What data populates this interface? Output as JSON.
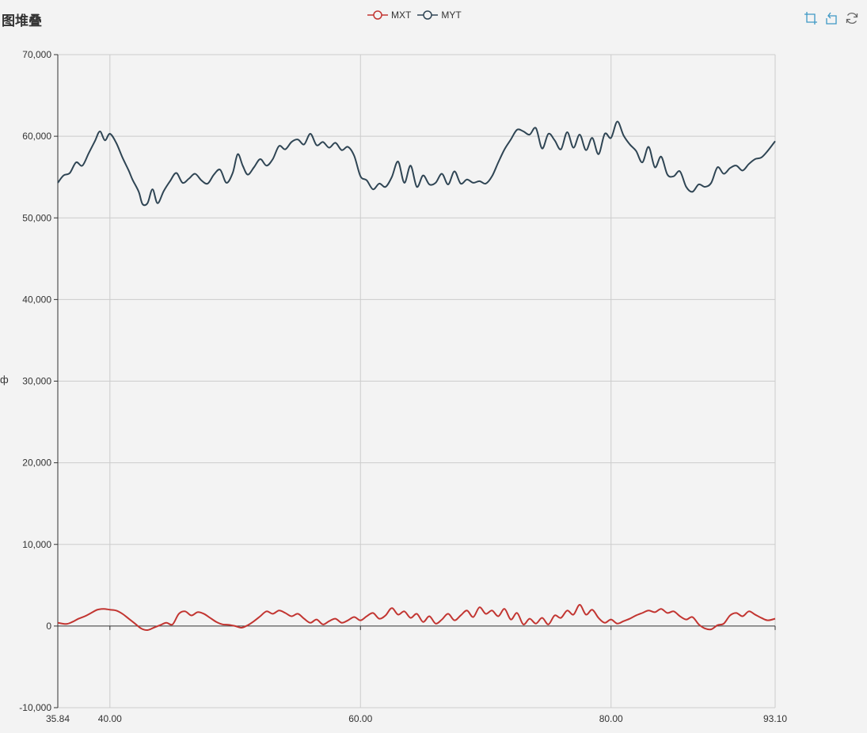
{
  "title": "图堆叠",
  "ylabel_fragment": "ф",
  "legend": [
    {
      "name": "MXT",
      "color": "#c23531"
    },
    {
      "name": "MYT",
      "color": "#2f4554"
    }
  ],
  "toolbox": {
    "icons": [
      "data-zoom-icon",
      "zoom-reset-icon",
      "restore-icon"
    ],
    "color": "#3e98c5"
  },
  "chart_data": {
    "type": "line",
    "xlim": [
      35.84,
      93.1
    ],
    "ylim": [
      -10000,
      70000
    ],
    "xticks": [
      35.84,
      40.0,
      60.0,
      80.0,
      93.1
    ],
    "xtick_labels": [
      "35.84",
      "40.00",
      "60.00",
      "80.00",
      "93.10"
    ],
    "yticks": [
      -10000,
      0,
      10000,
      20000,
      30000,
      40000,
      50000,
      60000,
      70000
    ],
    "ytick_labels": [
      "-10,000",
      "0",
      "10,000",
      "20,000",
      "30,000",
      "40,000",
      "50,000",
      "60,000",
      "70,000"
    ],
    "grid": true,
    "legend_position": "top-center",
    "series": [
      {
        "name": "MXT",
        "color": "#c23531",
        "points": [
          [
            35.84,
            400
          ],
          [
            36.5,
            250
          ],
          [
            37.0,
            500
          ],
          [
            37.5,
            900
          ],
          [
            38.0,
            1200
          ],
          [
            38.5,
            1600
          ],
          [
            39.0,
            2000
          ],
          [
            39.5,
            2100
          ],
          [
            40.0,
            2000
          ],
          [
            40.5,
            1900
          ],
          [
            41.0,
            1500
          ],
          [
            41.5,
            900
          ],
          [
            42.0,
            300
          ],
          [
            42.5,
            -300
          ],
          [
            43.0,
            -500
          ],
          [
            43.5,
            -200
          ],
          [
            44.0,
            100
          ],
          [
            44.5,
            400
          ],
          [
            45.0,
            200
          ],
          [
            45.5,
            1500
          ],
          [
            46.0,
            1800
          ],
          [
            46.5,
            1300
          ],
          [
            47.0,
            1700
          ],
          [
            47.5,
            1500
          ],
          [
            48.0,
            1000
          ],
          [
            48.5,
            500
          ],
          [
            49.0,
            200
          ],
          [
            49.5,
            150
          ],
          [
            50.0,
            0
          ],
          [
            50.5,
            -200
          ],
          [
            51.0,
            100
          ],
          [
            51.5,
            600
          ],
          [
            52.0,
            1200
          ],
          [
            52.5,
            1800
          ],
          [
            53.0,
            1500
          ],
          [
            53.5,
            1900
          ],
          [
            54.0,
            1600
          ],
          [
            54.5,
            1200
          ],
          [
            55.0,
            1500
          ],
          [
            55.5,
            900
          ],
          [
            56.0,
            400
          ],
          [
            56.5,
            800
          ],
          [
            57.0,
            200
          ],
          [
            57.5,
            600
          ],
          [
            58.0,
            900
          ],
          [
            58.5,
            400
          ],
          [
            59.0,
            700
          ],
          [
            59.5,
            1100
          ],
          [
            60.0,
            700
          ],
          [
            60.5,
            1200
          ],
          [
            61.0,
            1600
          ],
          [
            61.5,
            900
          ],
          [
            62.0,
            1300
          ],
          [
            62.5,
            2200
          ],
          [
            63.0,
            1400
          ],
          [
            63.5,
            1800
          ],
          [
            64.0,
            1000
          ],
          [
            64.5,
            1500
          ],
          [
            65.0,
            500
          ],
          [
            65.5,
            1200
          ],
          [
            66.0,
            300
          ],
          [
            66.5,
            800
          ],
          [
            67.0,
            1500
          ],
          [
            67.5,
            700
          ],
          [
            68.0,
            1300
          ],
          [
            68.5,
            1900
          ],
          [
            69.0,
            1100
          ],
          [
            69.5,
            2300
          ],
          [
            70.0,
            1500
          ],
          [
            70.5,
            1900
          ],
          [
            71.0,
            1200
          ],
          [
            71.5,
            2100
          ],
          [
            72.0,
            800
          ],
          [
            72.5,
            1600
          ],
          [
            73.0,
            200
          ],
          [
            73.5,
            900
          ],
          [
            74.0,
            300
          ],
          [
            74.5,
            1000
          ],
          [
            75.0,
            200
          ],
          [
            75.5,
            1300
          ],
          [
            76.0,
            1000
          ],
          [
            76.5,
            1900
          ],
          [
            77.0,
            1400
          ],
          [
            77.5,
            2600
          ],
          [
            78.0,
            1400
          ],
          [
            78.5,
            2000
          ],
          [
            79.0,
            1000
          ],
          [
            79.5,
            400
          ],
          [
            80.0,
            800
          ],
          [
            80.5,
            300
          ],
          [
            81.0,
            600
          ],
          [
            81.5,
            900
          ],
          [
            82.0,
            1300
          ],
          [
            82.5,
            1600
          ],
          [
            83.0,
            1900
          ],
          [
            83.5,
            1700
          ],
          [
            84.0,
            2100
          ],
          [
            84.5,
            1600
          ],
          [
            85.0,
            1800
          ],
          [
            85.5,
            1200
          ],
          [
            86.0,
            800
          ],
          [
            86.5,
            1100
          ],
          [
            87.0,
            200
          ],
          [
            87.5,
            -300
          ],
          [
            88.0,
            -400
          ],
          [
            88.5,
            100
          ],
          [
            89.0,
            300
          ],
          [
            89.5,
            1300
          ],
          [
            90.0,
            1600
          ],
          [
            90.5,
            1200
          ],
          [
            91.0,
            1800
          ],
          [
            91.5,
            1400
          ],
          [
            92.0,
            1000
          ],
          [
            92.5,
            700
          ],
          [
            93.1,
            900
          ]
        ]
      },
      {
        "name": "MYT",
        "color": "#2f4554",
        "points": [
          [
            35.84,
            54300
          ],
          [
            36.3,
            55200
          ],
          [
            36.8,
            55500
          ],
          [
            37.3,
            56800
          ],
          [
            37.8,
            56400
          ],
          [
            38.3,
            57900
          ],
          [
            38.8,
            59400
          ],
          [
            39.2,
            60600
          ],
          [
            39.6,
            59500
          ],
          [
            40.0,
            60300
          ],
          [
            40.5,
            59200
          ],
          [
            41.0,
            57400
          ],
          [
            41.5,
            55800
          ],
          [
            41.8,
            54700
          ],
          [
            42.3,
            53200
          ],
          [
            42.6,
            51700
          ],
          [
            43.0,
            51800
          ],
          [
            43.4,
            53500
          ],
          [
            43.8,
            51800
          ],
          [
            44.3,
            53300
          ],
          [
            44.8,
            54500
          ],
          [
            45.3,
            55500
          ],
          [
            45.8,
            54300
          ],
          [
            46.3,
            54800
          ],
          [
            46.8,
            55400
          ],
          [
            47.3,
            54600
          ],
          [
            47.8,
            54200
          ],
          [
            48.3,
            55300
          ],
          [
            48.8,
            55900
          ],
          [
            49.3,
            54300
          ],
          [
            49.8,
            55500
          ],
          [
            50.2,
            57800
          ],
          [
            50.6,
            56400
          ],
          [
            51.0,
            55300
          ],
          [
            51.5,
            56200
          ],
          [
            52.0,
            57200
          ],
          [
            52.5,
            56400
          ],
          [
            53.0,
            57200
          ],
          [
            53.5,
            58800
          ],
          [
            54.0,
            58400
          ],
          [
            54.5,
            59300
          ],
          [
            55.0,
            59600
          ],
          [
            55.5,
            59000
          ],
          [
            56.0,
            60300
          ],
          [
            56.5,
            58900
          ],
          [
            57.0,
            59300
          ],
          [
            57.5,
            58600
          ],
          [
            58.0,
            59200
          ],
          [
            58.5,
            58300
          ],
          [
            59.0,
            58700
          ],
          [
            59.5,
            57600
          ],
          [
            60.0,
            55100
          ],
          [
            60.5,
            54600
          ],
          [
            61.0,
            53500
          ],
          [
            61.5,
            54200
          ],
          [
            62.0,
            53800
          ],
          [
            62.5,
            55000
          ],
          [
            63.0,
            56900
          ],
          [
            63.5,
            54300
          ],
          [
            64.0,
            56400
          ],
          [
            64.5,
            53800
          ],
          [
            65.0,
            55200
          ],
          [
            65.5,
            54100
          ],
          [
            66.0,
            54300
          ],
          [
            66.5,
            55400
          ],
          [
            67.0,
            54100
          ],
          [
            67.5,
            55700
          ],
          [
            68.0,
            54200
          ],
          [
            68.5,
            54700
          ],
          [
            69.0,
            54300
          ],
          [
            69.5,
            54500
          ],
          [
            70.0,
            54200
          ],
          [
            70.5,
            55100
          ],
          [
            71.0,
            56800
          ],
          [
            71.5,
            58400
          ],
          [
            72.0,
            59600
          ],
          [
            72.5,
            60800
          ],
          [
            73.0,
            60600
          ],
          [
            73.5,
            60200
          ],
          [
            74.0,
            61000
          ],
          [
            74.5,
            58500
          ],
          [
            75.0,
            60300
          ],
          [
            75.5,
            59500
          ],
          [
            76.0,
            58400
          ],
          [
            76.5,
            60500
          ],
          [
            77.0,
            58600
          ],
          [
            77.5,
            60200
          ],
          [
            78.0,
            58300
          ],
          [
            78.5,
            59800
          ],
          [
            79.0,
            57800
          ],
          [
            79.5,
            60300
          ],
          [
            80.0,
            59800
          ],
          [
            80.5,
            61800
          ],
          [
            81.0,
            60100
          ],
          [
            81.5,
            59000
          ],
          [
            82.0,
            58200
          ],
          [
            82.5,
            56800
          ],
          [
            83.0,
            58700
          ],
          [
            83.5,
            56200
          ],
          [
            84.0,
            57500
          ],
          [
            84.5,
            55300
          ],
          [
            85.0,
            55100
          ],
          [
            85.5,
            55700
          ],
          [
            86.0,
            53800
          ],
          [
            86.5,
            53200
          ],
          [
            87.0,
            54100
          ],
          [
            87.5,
            53800
          ],
          [
            88.0,
            54300
          ],
          [
            88.5,
            56200
          ],
          [
            89.0,
            55400
          ],
          [
            89.5,
            56100
          ],
          [
            90.0,
            56400
          ],
          [
            90.5,
            55800
          ],
          [
            91.0,
            56600
          ],
          [
            91.5,
            57200
          ],
          [
            92.0,
            57400
          ],
          [
            92.5,
            58200
          ],
          [
            93.1,
            59400
          ]
        ]
      }
    ]
  }
}
